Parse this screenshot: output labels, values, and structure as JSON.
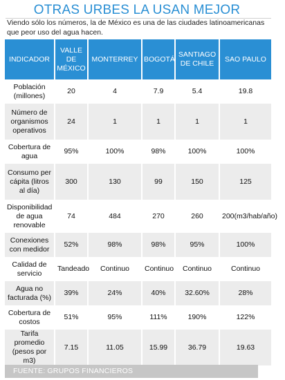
{
  "title": "OTRAS URBES LA USAN MEJOR",
  "subtitle": "Viendo sólo los números, la de México es una de las ciudades latinoamericanas que peor uso del agua hacen.",
  "table": {
    "headers": [
      "INDICADOR",
      "VALLE DE MÉXICO",
      "MONTERREY",
      "BOGOTÁ",
      "SANTIAGO DE CHILE",
      "SAO PAULO"
    ],
    "rows": [
      [
        "Población (millones)",
        "20",
        "4",
        "7.9",
        "5.4",
        "19.8"
      ],
      [
        "Número de organismos operativos",
        "24",
        "1",
        "1",
        "1",
        "1"
      ],
      [
        "Cobertura de agua",
        "95%",
        "100%",
        "98%",
        "100%",
        "100%"
      ],
      [
        "Consumo per cápita (litros al día)",
        "300",
        "130",
        "99",
        "150",
        "125"
      ],
      [
        "Disponibilidad de agua renovable",
        "74",
        "484",
        "270",
        "260",
        "200(m3/hab/año)"
      ],
      [
        "Conexiones con medidor",
        "52%",
        "98%",
        "98%",
        "95%",
        "100%"
      ],
      [
        "Calidad de servicio",
        "Tandeado",
        "Continuo",
        "Continuo",
        "Continuo",
        "Continuo"
      ],
      [
        "Agua no facturada (%)",
        "39%",
        "24%",
        "40%",
        "32.60%",
        "28%"
      ],
      [
        "Cobertura de costos",
        "51%",
        "95%",
        "111%",
        "190%",
        "122%"
      ],
      [
        "Tarifa promedio (pesos por m3)",
        "7.15",
        "11.05",
        "15.99",
        "36.79",
        "19.63"
      ]
    ]
  },
  "footer": "FUENTE: GRUPOS FINANCIEROS",
  "colors": {
    "accent": "#2a8fd4",
    "row_alt": "#ececec",
    "footer_bg": "#c6c6c6"
  }
}
